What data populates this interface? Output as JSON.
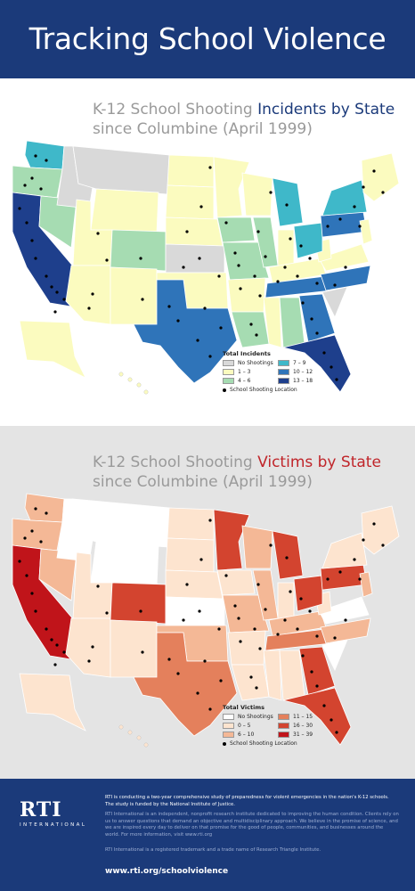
{
  "header": {
    "title": "Tracking School Violence"
  },
  "incidents_panel": {
    "title_prefix": "K-12 School Shooting ",
    "title_highlight": "Incidents by State",
    "title_line2": "since Columbine (April 1999)",
    "legend": {
      "title": "Total Incidents",
      "items": [
        {
          "label": "No Shootings",
          "color": "#d9d9d9"
        },
        {
          "label": "7 – 9",
          "color": "#3fb8c9"
        },
        {
          "label": "1 – 3",
          "color": "#fbfbbf"
        },
        {
          "label": "10 – 12",
          "color": "#2f74b9"
        },
        {
          "label": "4 – 6",
          "color": "#a6dcb2"
        },
        {
          "label": "13 – 18",
          "color": "#1e3f8c"
        }
      ],
      "location_label": "School Shooting Location"
    },
    "colors": {
      "none": "#d9d9d9",
      "c1": "#fbfbbf",
      "c2": "#a6dcb2",
      "c3": "#3fb8c9",
      "c4": "#2f74b9",
      "c5": "#1e3f8c"
    }
  },
  "victims_panel": {
    "title_prefix": "K-12 School Shooting ",
    "title_highlight": "Victims by State",
    "title_line2": "since Columbine (April 1999)",
    "legend": {
      "title": "Total Victims",
      "items": [
        {
          "label": "No Shootings",
          "color": "#ffffff"
        },
        {
          "label": "11 – 15",
          "color": "#e4805c"
        },
        {
          "label": "0 – 5",
          "color": "#fde4cf"
        },
        {
          "label": "16 – 30",
          "color": "#d3442f"
        },
        {
          "label": "6 – 10",
          "color": "#f4b896"
        },
        {
          "label": "31 – 39",
          "color": "#c0141a"
        }
      ],
      "location_label": "School Shooting Location"
    },
    "colors": {
      "none": "#ffffff",
      "c1": "#fde4cf",
      "c2": "#f4b896",
      "c3": "#e4805c",
      "c4": "#d3442f",
      "c5": "#c0141a"
    }
  },
  "footer": {
    "logo_main": "RTI",
    "logo_sub": "INTERNATIONAL",
    "text1": "RTI is conducting a two-year comprehensive study of preparedness for violent emergencies in the nation's K-12 schools. The study is funded by the National Institute of Justice.",
    "text2": "RTI International is an independent, nonprofit research institute dedicated to improving the human condition. Clients rely on us to answer questions that demand an objective and multidisciplinary approach. We believe in the promise of science, and we are inspired every day to deliver on that promise for the good of people, communities, and businesses around the world. For more information, visit www.rti.org",
    "text3": "RTI International is a registered trademark and a trade name of Research Triangle Institute.",
    "url": "www.rti.org/schoolviolence"
  }
}
